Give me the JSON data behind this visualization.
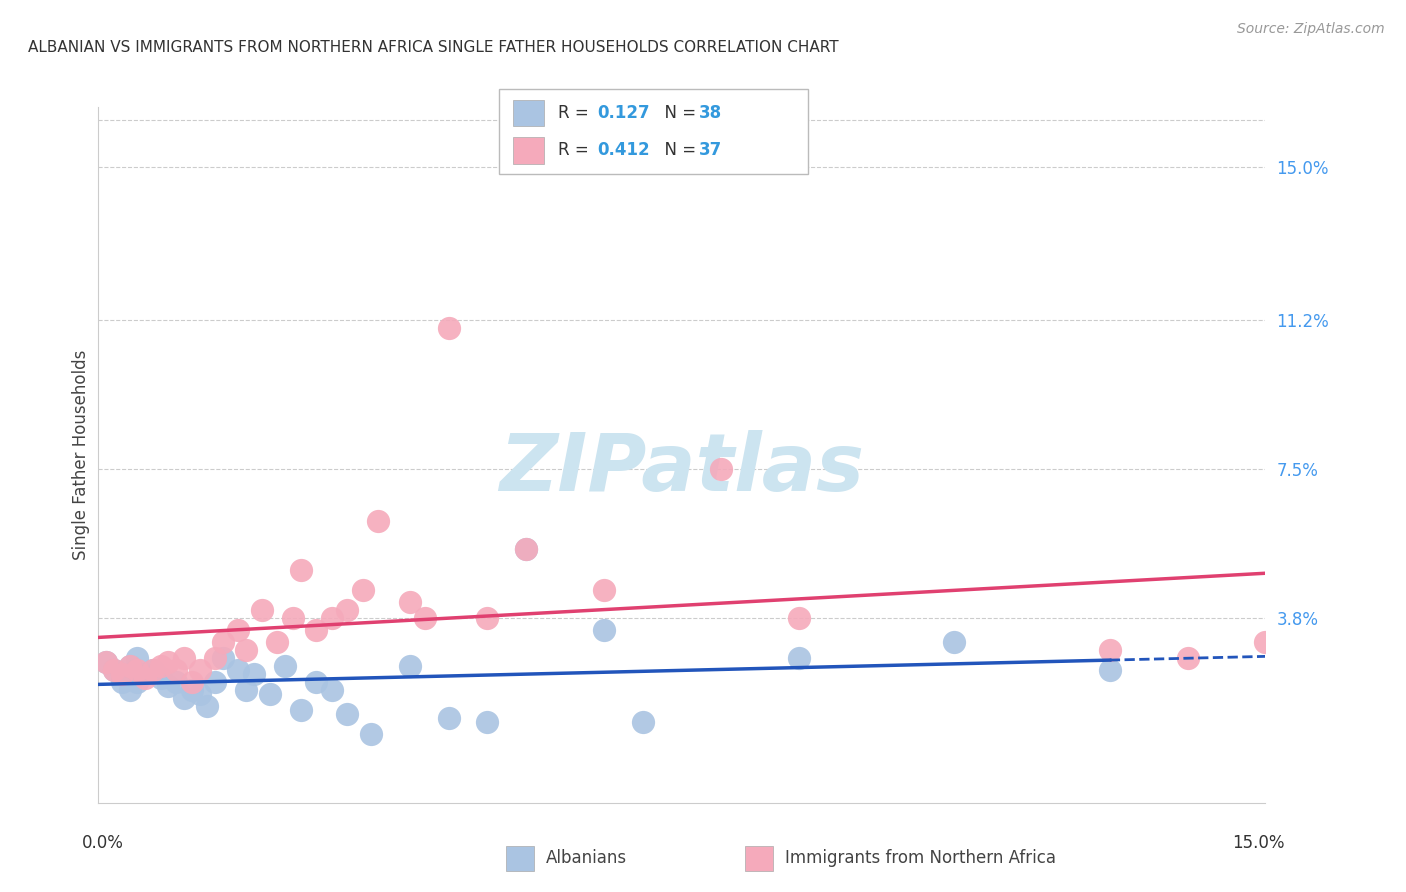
{
  "title": "ALBANIAN VS IMMIGRANTS FROM NORTHERN AFRICA SINGLE FATHER HOUSEHOLDS CORRELATION CHART",
  "source": "Source: ZipAtlas.com",
  "ylabel": "Single Father Households",
  "ytick_values": [
    0.15,
    0.112,
    0.075,
    0.038
  ],
  "xmin": 0.0,
  "xmax": 0.15,
  "ymin": -0.008,
  "ymax": 0.165,
  "albanians_color": "#aac4e2",
  "immigrants_color": "#f5aabb",
  "trendline_albanian_color": "#2255bb",
  "trendline_immigrant_color": "#e04070",
  "legend_label_albanian": "Albanians",
  "legend_label_immigrant": "Immigrants from Northern Africa",
  "legend_text_color": "#333333",
  "legend_value_color": "#3399dd",
  "background_color": "#ffffff",
  "grid_color": "#cccccc",
  "watermark_text": "ZIPatlas",
  "watermark_color": "#cce4f0",
  "watermark_fontsize": 58,
  "albanian_x": [
    0.001,
    0.002,
    0.003,
    0.003,
    0.004,
    0.004,
    0.005,
    0.005,
    0.006,
    0.007,
    0.008,
    0.009,
    0.01,
    0.011,
    0.012,
    0.013,
    0.014,
    0.015,
    0.016,
    0.018,
    0.019,
    0.02,
    0.022,
    0.024,
    0.026,
    0.028,
    0.03,
    0.032,
    0.035,
    0.04,
    0.045,
    0.05,
    0.055,
    0.065,
    0.07,
    0.09,
    0.11,
    0.13
  ],
  "albanian_y": [
    0.027,
    0.025,
    0.024,
    0.022,
    0.026,
    0.02,
    0.028,
    0.022,
    0.024,
    0.025,
    0.023,
    0.021,
    0.022,
    0.018,
    0.02,
    0.019,
    0.016,
    0.022,
    0.028,
    0.025,
    0.02,
    0.024,
    0.019,
    0.026,
    0.015,
    0.022,
    0.02,
    0.014,
    0.009,
    0.026,
    0.013,
    0.012,
    0.055,
    0.035,
    0.012,
    0.028,
    0.032,
    0.025
  ],
  "immigrant_x": [
    0.001,
    0.002,
    0.003,
    0.004,
    0.005,
    0.006,
    0.007,
    0.008,
    0.009,
    0.01,
    0.011,
    0.012,
    0.013,
    0.015,
    0.016,
    0.018,
    0.019,
    0.021,
    0.023,
    0.025,
    0.026,
    0.028,
    0.03,
    0.032,
    0.034,
    0.036,
    0.04,
    0.042,
    0.045,
    0.05,
    0.055,
    0.065,
    0.08,
    0.09,
    0.13,
    0.14,
    0.15
  ],
  "immigrant_y": [
    0.027,
    0.025,
    0.024,
    0.026,
    0.025,
    0.023,
    0.025,
    0.026,
    0.027,
    0.025,
    0.028,
    0.022,
    0.025,
    0.028,
    0.032,
    0.035,
    0.03,
    0.04,
    0.032,
    0.038,
    0.05,
    0.035,
    0.038,
    0.04,
    0.045,
    0.062,
    0.042,
    0.038,
    0.11,
    0.038,
    0.055,
    0.045,
    0.075,
    0.038,
    0.03,
    0.028,
    0.032
  ]
}
